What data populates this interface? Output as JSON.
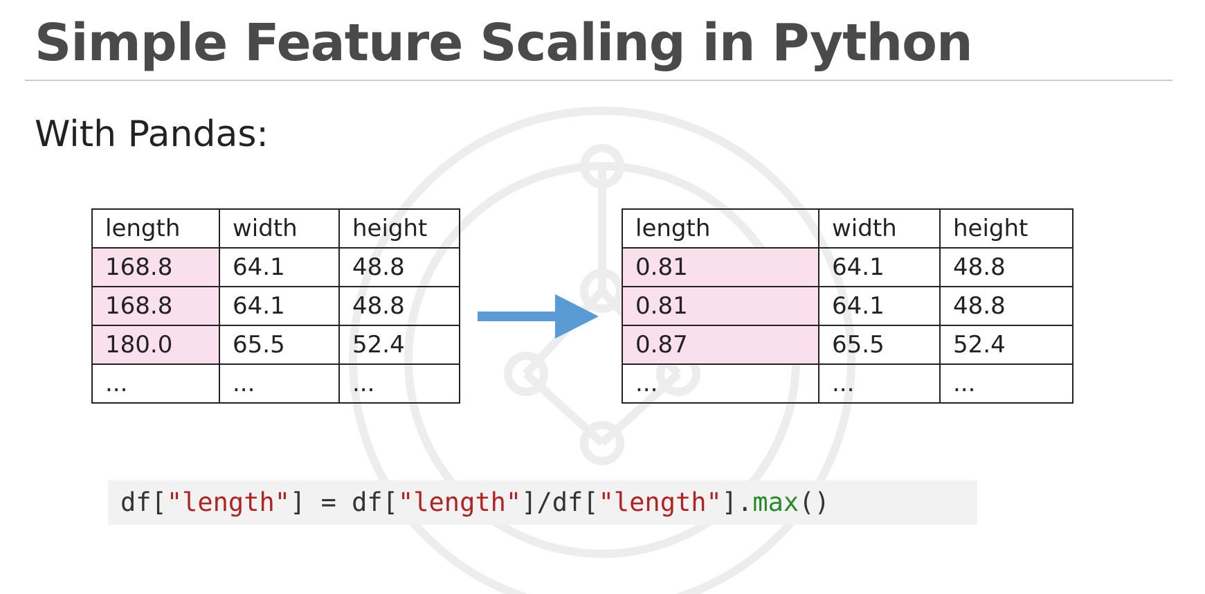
{
  "slide": {
    "title": "Simple Feature Scaling in Python",
    "subtitle": "With Pandas:"
  },
  "tables": {
    "before": {
      "headers": [
        "length",
        "width",
        "height"
      ],
      "rows": [
        [
          "168.8",
          "64.1",
          "48.8"
        ],
        [
          "168.8",
          "64.1",
          "48.8"
        ],
        [
          "180.0",
          "65.5",
          "52.4"
        ],
        [
          "...",
          "...",
          "..."
        ]
      ]
    },
    "after": {
      "headers": [
        "length",
        "width",
        "height"
      ],
      "rows": [
        [
          "0.81",
          "64.1",
          "48.8"
        ],
        [
          "0.81",
          "64.1",
          "48.8"
        ],
        [
          "0.87",
          "65.5",
          "52.4"
        ],
        [
          "...",
          "...",
          "..."
        ]
      ]
    }
  },
  "code": {
    "tokens": [
      {
        "type": "plain",
        "text": "df["
      },
      {
        "type": "string",
        "text": "\"length\""
      },
      {
        "type": "plain",
        "text": "] = df["
      },
      {
        "type": "string",
        "text": "\"length\""
      },
      {
        "type": "plain",
        "text": "]/df["
      },
      {
        "type": "string",
        "text": "\"length\""
      },
      {
        "type": "plain",
        "text": "]."
      },
      {
        "type": "function",
        "text": "max"
      },
      {
        "type": "plain",
        "text": "()"
      }
    ]
  },
  "icons": {
    "arrow": "right-arrow-icon",
    "watermark": "network-logo-watermark"
  },
  "colors": {
    "highlight_cell": "#f9e0ec",
    "arrow": "#5b9bd5",
    "code_background": "#f2f2f2",
    "code_string": "#b22222",
    "code_function": "#2a8a2a",
    "title_text": "#4a4a4a",
    "title_rule": "#c9c9dc"
  }
}
